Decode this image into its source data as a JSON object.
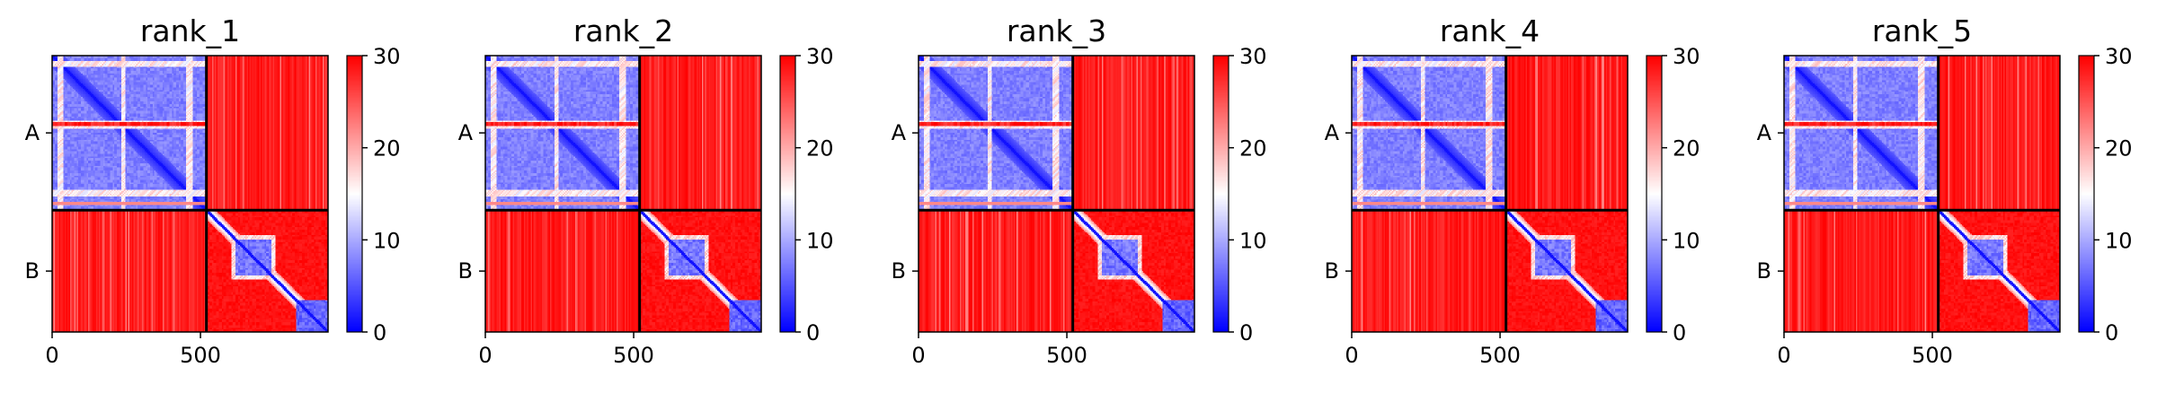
{
  "chart_data": {
    "type": "heatmap",
    "description_of_data": "predicted aligned error matrices for a two-chain complex",
    "colormap": {
      "name": "bwr",
      "colors": [
        "#0000ff",
        "#ffffff",
        "#ff0000"
      ]
    },
    "colorbar": {
      "range": [
        0,
        30
      ],
      "ticks": [
        "0",
        "10",
        "20",
        "30"
      ]
    },
    "chains": {
      "labels": [
        "A",
        "B"
      ],
      "boundaries": [
        0,
        520,
        930
      ]
    },
    "x_ticks": [
      0,
      500
    ],
    "x_tick_labels": [
      "0",
      "500"
    ],
    "y_tick_labels": [
      "A",
      "B"
    ],
    "panels": [
      {
        "title": "rank_1"
      },
      {
        "title": "rank_2"
      },
      {
        "title": "rank_3"
      },
      {
        "title": "rank_4"
      },
      {
        "title": "rank_5"
      }
    ]
  }
}
